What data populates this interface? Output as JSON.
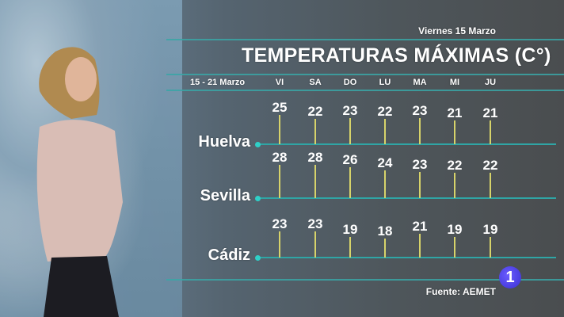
{
  "header": {
    "date": "Viernes 15 Marzo",
    "title": "TEMPERATURAS MÁXIMAS (C°)",
    "range": "15 - 21 Marzo"
  },
  "footer": {
    "source": "Fuente: AEMET",
    "channel_logo": "1"
  },
  "colors": {
    "bar": "#d7d36a",
    "line": "#2fa5a5",
    "dot": "#2fd0c8"
  },
  "chart_data": {
    "type": "bar",
    "title": "TEMPERATURAS MÁXIMAS (C°)",
    "categories": [
      "VI",
      "SA",
      "DO",
      "LU",
      "MA",
      "MI",
      "JU"
    ],
    "series": [
      {
        "name": "Huelva",
        "values": [
          25,
          22,
          23,
          22,
          23,
          21,
          21
        ]
      },
      {
        "name": "Sevilla",
        "values": [
          28,
          28,
          26,
          24,
          23,
          22,
          22
        ]
      },
      {
        "name": "Cádiz",
        "values": [
          23,
          23,
          19,
          18,
          21,
          19,
          19
        ]
      }
    ]
  }
}
